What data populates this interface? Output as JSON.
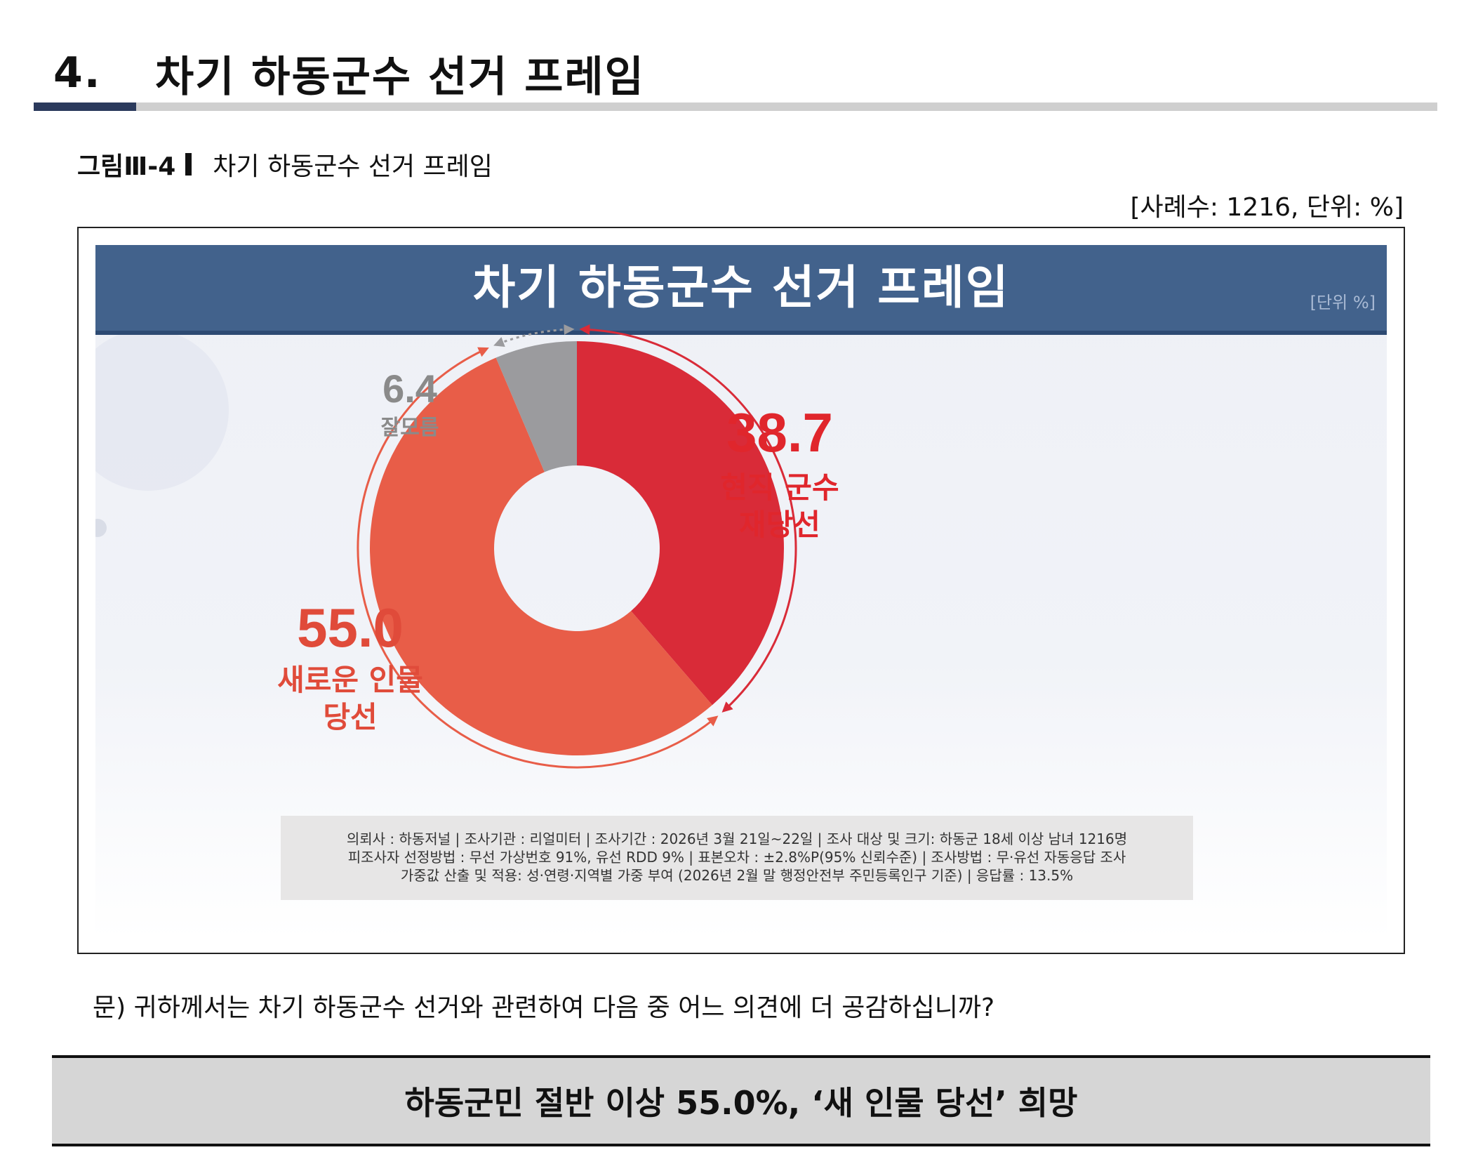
{
  "section": {
    "number": "4.",
    "title": "차기 하동군수 선거 프레임"
  },
  "figure": {
    "label": "그림Ⅲ-4",
    "title": "차기 하동군수 선거 프레임"
  },
  "sample_note": "[사례수: 1216, 단위: %]",
  "slide": {
    "title": "차기 하동군수 선거 프레임",
    "unit": "[단위 %]"
  },
  "chart_data": {
    "type": "pie",
    "donut": true,
    "title": "차기 하동군수 선거 프레임",
    "unit": "%",
    "slices": [
      {
        "label": "현직 군수 재당선",
        "value": 38.7,
        "value_label": "38.7",
        "color": "#d92b38",
        "label_color": "#e0262c"
      },
      {
        "label": "새로운 인물 당선",
        "value": 55.0,
        "value_label": "55.0",
        "color": "#e85d48",
        "label_color": "#e04b3a"
      },
      {
        "label": "잘모름",
        "value": 6.4,
        "value_label": "6.4",
        "color": "#9b9b9e",
        "label_color": "#8a8a8a"
      }
    ],
    "label_lines": [
      [
        "현직 군수",
        "재당선"
      ],
      [
        "새로운 인물",
        "당선"
      ],
      [
        "잘모름"
      ]
    ]
  },
  "source": [
    "의뢰사 : 하동저널 | 조사기관 : 리얼미터  | 조사기간 : 2026년 3월 21일~22일 | 조사 대상 및 크기: 하동군 18세 이상 남녀 1216명",
    "피조사자 선정방법 : 무선 가상번호 91%, 유선 RDD 9% | 표본오차 : ±2.8%P(95% 신뢰수준) | 조사방법 : 무·유선 자동응답 조사",
    "가중값 산출 및 적용: 성·연령·지역별 가중 부여 (2026년 2월 말 행정안전부 주민등록인구 기준) | 응답률 : 13.5%"
  ],
  "question": "문) 귀하께서는 차기 하동군수 선거와 관련하여 다음 중 어느 의견에 더 공감하십니까?",
  "headline": "하동군민 절반 이상 55.0%, ‘새 인물 당선’ 희망"
}
